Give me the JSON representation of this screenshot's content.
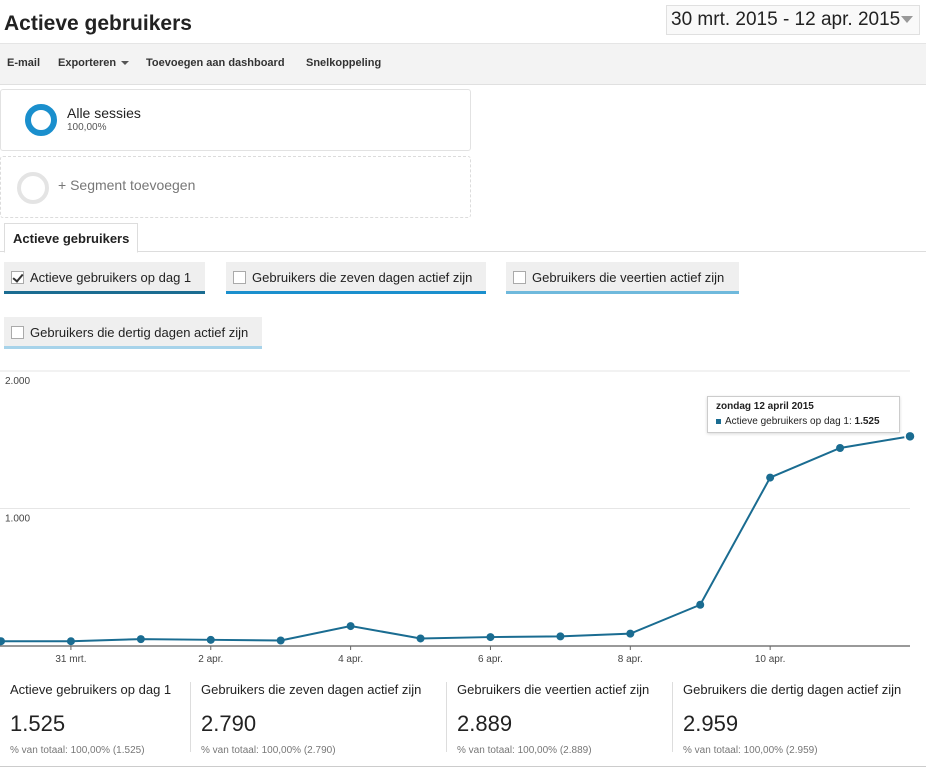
{
  "page": {
    "title": "Actieve gebruikers"
  },
  "date_range": {
    "label": "30 mrt. 2015 - 12 apr. 2015"
  },
  "toolbar": {
    "email": "E-mail",
    "export": "Exporteren",
    "add_dashboard": "Toevoegen aan dashboard",
    "shortcut": "Snelkoppeling"
  },
  "segments": {
    "all": {
      "name": "Alle sessies",
      "percent": "100,00%"
    },
    "add_label": "+ Segment toevoegen"
  },
  "tab": {
    "label": "Actieve gebruikers"
  },
  "metrics": [
    {
      "label": "Actieve gebruikers op dag 1",
      "checked": true,
      "color": "#1a6c91"
    },
    {
      "label": "Gebruikers die zeven dagen actief zijn",
      "checked": false,
      "color": "#1a8fcd"
    },
    {
      "label": "Gebruikers die veertien actief zijn",
      "checked": false,
      "color": "#6fb9dc"
    },
    {
      "label": "Gebruikers die dertig dagen actief zijn",
      "checked": false,
      "color": "#a7d3ea"
    }
  ],
  "chart_data": {
    "type": "line",
    "title": "",
    "ylim": [
      0,
      2000
    ],
    "y_ticks": [
      {
        "value": 2000,
        "label": "2.000"
      },
      {
        "value": 1000,
        "label": "1.000"
      }
    ],
    "x": [
      "30 mrt.",
      "31 mrt.",
      "1 apr.",
      "2 apr.",
      "3 apr.",
      "4 apr.",
      "5 apr.",
      "6 apr.",
      "7 apr.",
      "8 apr.",
      "9 apr.",
      "10 apr.",
      "11 apr.",
      "12 apr."
    ],
    "x_tick_labels": [
      {
        "index": 1,
        "label": "31 mrt."
      },
      {
        "index": 3,
        "label": "2 apr."
      },
      {
        "index": 5,
        "label": "4 apr."
      },
      {
        "index": 7,
        "label": "6 apr."
      },
      {
        "index": 9,
        "label": "8 apr."
      },
      {
        "index": 11,
        "label": "10 apr."
      }
    ],
    "series": [
      {
        "name": "Actieve gebruikers op dag 1",
        "color": "#1a6c91",
        "values": [
          35,
          35,
          50,
          45,
          40,
          145,
          55,
          65,
          70,
          90,
          300,
          1225,
          1440,
          1525
        ]
      }
    ],
    "tooltip": {
      "date": "zondag 12 april 2015",
      "series": "Actieve gebruikers op dag 1: ",
      "value": "1.525"
    }
  },
  "scorecards": [
    {
      "label": "Actieve gebruikers op dag 1",
      "value": "1.525",
      "sub": "% van totaal: 100,00% (1.525)"
    },
    {
      "label": "Gebruikers die zeven dagen actief zijn",
      "value": "2.790",
      "sub": "% van totaal: 100,00% (2.790)"
    },
    {
      "label": "Gebruikers die veertien actief zijn",
      "value": "2.889",
      "sub": "% van totaal: 100,00% (2.889)"
    },
    {
      "label": "Gebruikers die dertig dagen actief zijn",
      "value": "2.959",
      "sub": "% van totaal: 100,00% (2.959)"
    }
  ]
}
